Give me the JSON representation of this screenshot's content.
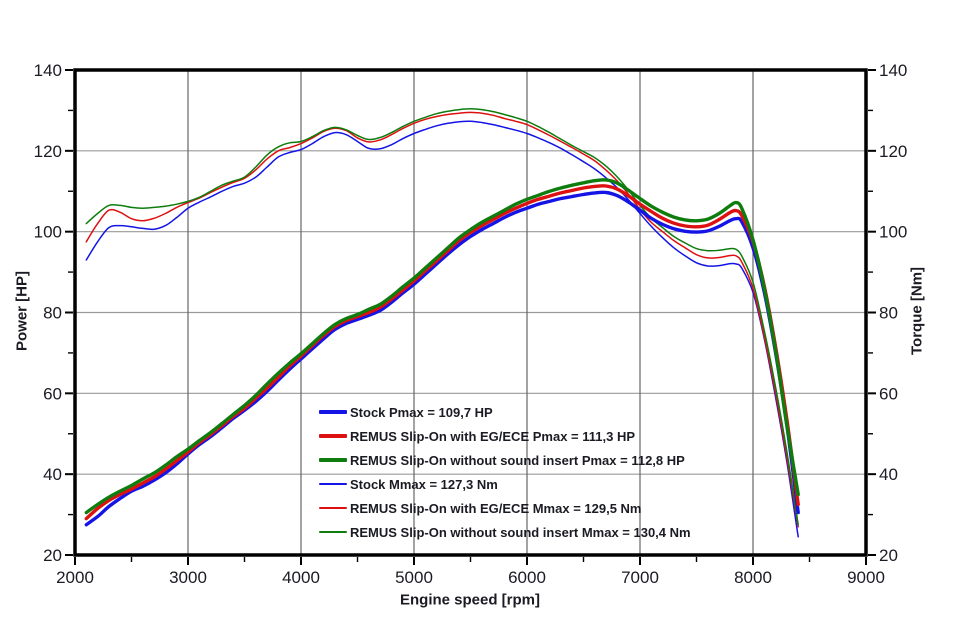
{
  "chart_data": {
    "type": "line",
    "title": "",
    "xlabel": "Engine speed [rpm]",
    "ylabel_left": "Power [HP]",
    "ylabel_right": "Torque [Nm]",
    "x_range": [
      2000,
      9000
    ],
    "y_range": [
      20,
      140
    ],
    "x_major_ticks": [
      2000,
      3000,
      4000,
      5000,
      6000,
      7000,
      8000,
      9000
    ],
    "x_minor_step": 500,
    "y_major_ticks": [
      20,
      40,
      60,
      80,
      100,
      120,
      140
    ],
    "y_minor_step": 10,
    "grid": "major-only",
    "grid_color_vertical": "#666666",
    "grid_color_horizontal": "#9a9a9a",
    "frame_color": "#000000",
    "tick_label_color": "#1b1b24",
    "legend_position": "inside-bottom-center",
    "x": [
      2100,
      2200,
      2300,
      2400,
      2500,
      2600,
      2700,
      2800,
      2900,
      3000,
      3100,
      3200,
      3300,
      3400,
      3500,
      3600,
      3700,
      3800,
      3900,
      4000,
      4100,
      4200,
      4300,
      4400,
      4500,
      4600,
      4700,
      4800,
      4900,
      5000,
      5100,
      5200,
      5300,
      5400,
      5500,
      5600,
      5700,
      5800,
      5900,
      6000,
      6100,
      6200,
      6300,
      6400,
      6500,
      6600,
      6700,
      6800,
      6900,
      7000,
      7100,
      7200,
      7300,
      7400,
      7500,
      7600,
      7700,
      7800,
      7850,
      7900,
      8000,
      8100,
      8200,
      8300,
      8400
    ],
    "series": [
      {
        "name": "stock-power",
        "legend": "Stock Pmax = 109,7 HP",
        "pmax_hp": 109.7,
        "unit": "HP",
        "axis": "power-left",
        "color": "#1414e6",
        "width": "thick",
        "values": [
          27.5,
          29.5,
          32,
          34,
          35.8,
          37,
          38.5,
          40.3,
          42.5,
          45,
          47.3,
          49.3,
          51.5,
          53.8,
          55.8,
          58,
          60.5,
          63.3,
          66,
          68.5,
          71,
          73.5,
          75.8,
          77.3,
          78.3,
          79.3,
          80.5,
          82.5,
          84.8,
          87,
          89.5,
          92,
          94.5,
          96.8,
          98.8,
          100.5,
          102,
          103.5,
          104.8,
          105.8,
          106.8,
          107.5,
          108.2,
          108.7,
          109.2,
          109.6,
          109.7,
          108.9,
          107.3,
          105.3,
          103.3,
          101.8,
          100.7,
          100.1,
          99.9,
          100.2,
          101.3,
          102.8,
          103.2,
          102.5,
          96,
          85,
          70,
          52,
          30.5
        ]
      },
      {
        "name": "remus-egece-power",
        "legend": "REMUS Slip-On with EG/ECE Pmax = 111,3 HP",
        "pmax_hp": 111.3,
        "unit": "HP",
        "axis": "power-left",
        "color": "#dd1111",
        "width": "thick",
        "values": [
          29,
          31.5,
          33.5,
          35,
          36.3,
          37.8,
          39.3,
          41.2,
          43.3,
          45.5,
          47.8,
          49.8,
          52,
          54.3,
          56.3,
          58.8,
          61.3,
          64,
          66.8,
          69.2,
          71.8,
          74.3,
          76.5,
          78,
          79,
          80,
          81.3,
          83.3,
          85.5,
          87.8,
          90.3,
          92.8,
          95.3,
          97.8,
          99.8,
          101.5,
          103,
          104.5,
          105.8,
          107,
          108,
          108.8,
          109.6,
          110.2,
          110.8,
          111.2,
          111.3,
          110.5,
          108.8,
          106.8,
          105,
          103.3,
          102.1,
          101.4,
          101.2,
          101.6,
          103,
          104.8,
          105.2,
          104,
          97.5,
          86.5,
          71.5,
          53.5,
          32.5
        ]
      },
      {
        "name": "remus-nosound-power",
        "legend": "REMUS Slip-On without sound insert Pmax = 112,8 HP",
        "pmax_hp": 112.8,
        "unit": "HP",
        "axis": "power-left",
        "color": "#0e7d0e",
        "width": "thick",
        "values": [
          30.5,
          32.5,
          34.3,
          35.8,
          37.2,
          38.8,
          40.3,
          42.2,
          44.3,
          46.2,
          48.3,
          50.3,
          52.5,
          54.8,
          57,
          59.5,
          62.3,
          65,
          67.5,
          69.8,
          72.3,
          74.8,
          77,
          78.5,
          79.5,
          80.8,
          82,
          84,
          86.3,
          88.5,
          91,
          93.5,
          96,
          98.5,
          100.5,
          102.3,
          103.8,
          105.3,
          106.8,
          108,
          109,
          110,
          110.8,
          111.5,
          112.1,
          112.6,
          112.8,
          112,
          110.2,
          108.2,
          106.3,
          104.8,
          103.6,
          102.9,
          102.7,
          103.1,
          104.5,
          106.5,
          107.2,
          105.8,
          98,
          86,
          70.5,
          52,
          35
        ]
      },
      {
        "name": "stock-torque",
        "legend": "Stock Mmax = 127,3 Nm",
        "mmax_nm": 127.3,
        "unit": "Nm",
        "axis": "torque-right",
        "color": "#1414e6",
        "width": "thin",
        "values": [
          93,
          97.5,
          101,
          101.5,
          101.2,
          100.8,
          100.6,
          101.5,
          103.5,
          105.8,
          107.3,
          108.6,
          110,
          111.2,
          112,
          113.5,
          116,
          118.5,
          119.6,
          120.3,
          121.8,
          123.5,
          124.5,
          124,
          122.3,
          120.6,
          120.5,
          121.5,
          123,
          124.3,
          125.3,
          126.2,
          126.8,
          127.2,
          127.3,
          127,
          126.5,
          125.8,
          125.1,
          124.3,
          123.2,
          122,
          120.6,
          119,
          117.3,
          115.5,
          113.3,
          110.8,
          107.8,
          104.5,
          101.3,
          98.5,
          96,
          94,
          92.3,
          91.5,
          91.6,
          92.1,
          92,
          91,
          85,
          73.5,
          59,
          43,
          24.5
        ]
      },
      {
        "name": "remus-egece-torque",
        "legend": "REMUS Slip-On with EG/ECE Mmax = 129,5 Nm",
        "mmax_nm": 129.5,
        "unit": "Nm",
        "axis": "torque-right",
        "color": "#dd1111",
        "width": "thin",
        "values": [
          97.5,
          102,
          105.3,
          104.8,
          103.2,
          102.7,
          103.3,
          104.5,
          106,
          107.2,
          108.3,
          109.7,
          111,
          112.2,
          113.2,
          115.3,
          118,
          120,
          120.8,
          121.8,
          123.2,
          124.8,
          125.6,
          125,
          123.2,
          122.2,
          122.7,
          124,
          125.5,
          126.8,
          127.8,
          128.5,
          129,
          129.3,
          129.5,
          129.3,
          128.8,
          128,
          127.3,
          126.5,
          125.2,
          123.8,
          122.3,
          120.8,
          119.2,
          117.5,
          115.2,
          112.5,
          109.2,
          105.5,
          102.3,
          100,
          97.8,
          96,
          94.3,
          93.5,
          93.6,
          94.1,
          94,
          92.5,
          86,
          74,
          60,
          44,
          27
        ]
      },
      {
        "name": "remus-nosound-torque",
        "legend": "REMUS Slip-On without sound insert Mmax = 130,4 Nm",
        "mmax_nm": 130.4,
        "unit": "Nm",
        "axis": "torque-right",
        "color": "#0e7d0e",
        "width": "thin",
        "values": [
          102,
          104.5,
          106.5,
          106.5,
          106,
          105.8,
          106,
          106.3,
          106.8,
          107.5,
          108.5,
          110,
          111.5,
          112.5,
          113.5,
          116,
          119,
          121,
          122,
          122.3,
          123.5,
          125,
          125.8,
          125.2,
          123.8,
          122.8,
          123.3,
          124.5,
          126,
          127.3,
          128.3,
          129.2,
          129.8,
          130.2,
          130.4,
          130.2,
          129.7,
          129,
          128.2,
          127.3,
          126,
          124.5,
          122.9,
          121.3,
          119.8,
          118.3,
          116.2,
          113.5,
          110.2,
          106.5,
          103.3,
          101,
          98.8,
          97.2,
          95.8,
          95.3,
          95.4,
          95.8,
          95.6,
          94,
          87.5,
          75.5,
          61.5,
          45.5,
          27.5
        ]
      }
    ]
  }
}
